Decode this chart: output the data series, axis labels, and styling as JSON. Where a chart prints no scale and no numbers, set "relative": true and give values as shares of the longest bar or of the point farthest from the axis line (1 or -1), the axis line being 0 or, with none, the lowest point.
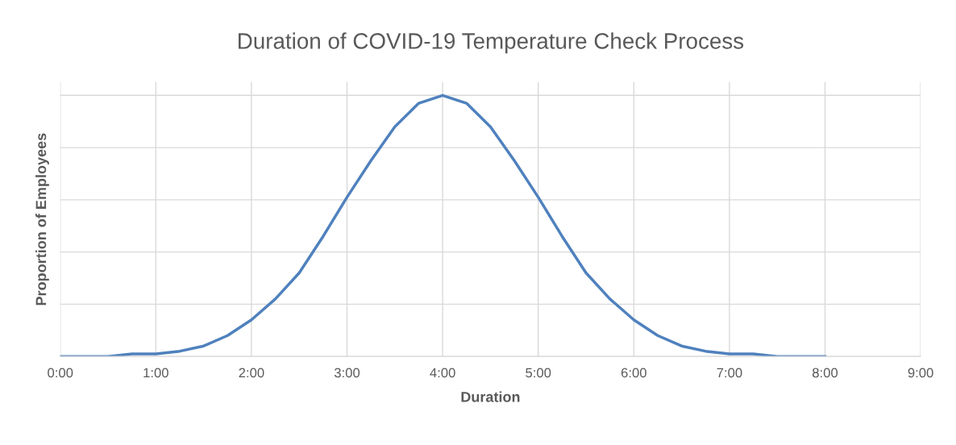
{
  "chart_data": {
    "type": "line",
    "title": "Duration of COVID-19 Temperature Check Process",
    "xlabel": "Duration",
    "ylabel": "Proportion of Employees",
    "x": [
      0,
      0.25,
      0.5,
      0.75,
      1,
      1.25,
      1.5,
      1.75,
      2,
      2.25,
      2.5,
      2.75,
      3,
      3.25,
      3.5,
      3.75,
      4,
      4.25,
      4.5,
      4.75,
      5,
      5.25,
      5.5,
      5.75,
      6,
      6.25,
      6.5,
      6.75,
      7,
      7.25,
      7.5,
      7.75,
      8
    ],
    "series": [
      {
        "color": "#4f81bd",
        "values": [
          0,
          0,
          0,
          0.01,
          0.01,
          0.02,
          0.04,
          0.08,
          0.14,
          0.22,
          0.32,
          0.46,
          0.61,
          0.75,
          0.88,
          0.97,
          1,
          0.97,
          0.88,
          0.75,
          0.61,
          0.46,
          0.32,
          0.22,
          0.14,
          0.08,
          0.04,
          0.02,
          0.01,
          0.01,
          0,
          0,
          0
        ]
      }
    ],
    "relative": true,
    "xlim": [
      0,
      9
    ],
    "xticks": [
      {
        "value": 0,
        "label": "0:00"
      },
      {
        "value": 1,
        "label": "1:00"
      },
      {
        "value": 2,
        "label": "2:00"
      },
      {
        "value": 3,
        "label": "3:00"
      },
      {
        "value": 4,
        "label": "4:00"
      },
      {
        "value": 5,
        "label": "5:00"
      },
      {
        "value": 6,
        "label": "6:00"
      },
      {
        "value": 7,
        "label": "7:00"
      },
      {
        "value": 8,
        "label": "8:00"
      },
      {
        "value": 9,
        "label": "9:00"
      }
    ],
    "grid": true,
    "marker": "none",
    "line_style": "solid"
  }
}
